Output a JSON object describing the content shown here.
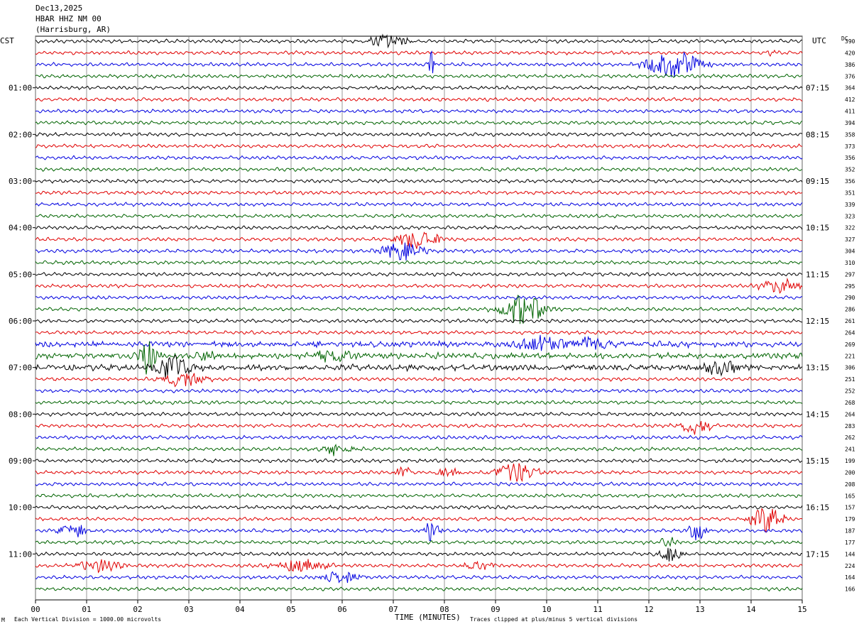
{
  "header": {
    "date": "Dec13,2025",
    "station": "HBAR HHZ NM 00",
    "location": "(Harrisburg, AR)"
  },
  "footer": {
    "left_mark": "M",
    "scale_note": "Each Vertical Division = 1000.00 microvolts",
    "clip_note": "Traces clipped at plus/minus 5 vertical divisions"
  },
  "chart_data": {
    "type": "line",
    "title": "",
    "xlabel": "TIME (MINUTES)",
    "left_axis_label": "CST",
    "right_axis_label": "UTC",
    "dc_label": "DC",
    "xlim": [
      0,
      15
    ],
    "x_ticks": [
      "00",
      "01",
      "02",
      "03",
      "04",
      "05",
      "06",
      "07",
      "08",
      "09",
      "10",
      "11",
      "12",
      "13",
      "14",
      "15"
    ],
    "grid": true,
    "trace_colors": [
      "#000000",
      "#e00000",
      "#0000e0",
      "#006400"
    ],
    "left_times": [
      "01:00",
      "02:00",
      "03:00",
      "04:00",
      "05:00",
      "06:00",
      "07:00",
      "08:00",
      "09:00",
      "10:00",
      "11:00"
    ],
    "right_times": [
      "07:15",
      "08:15",
      "09:15",
      "10:15",
      "11:15",
      "12:15",
      "13:15",
      "14:15",
      "15:15",
      "16:15",
      "17:15"
    ],
    "dc_offsets": [
      "390",
      "420",
      "386",
      "376",
      "364",
      "412",
      "411",
      "394",
      "358",
      "373",
      "356",
      "352",
      "356",
      "351",
      "339",
      "323",
      "322",
      "327",
      "304",
      "310",
      "297",
      "295",
      "290",
      "286",
      "261",
      "264",
      "269",
      "221",
      "306",
      "251",
      "252",
      "268",
      "264",
      "283",
      "262",
      "241",
      "199",
      "200",
      "208",
      "165",
      "157",
      "179",
      "187",
      "177",
      "144",
      "224",
      "164",
      "166"
    ],
    "events": [
      {
        "trace": 0,
        "minute": 6.9,
        "amp": 0.6,
        "dur": 0.35
      },
      {
        "trace": 1,
        "minute": 14.4,
        "amp": 0.3,
        "dur": 0.1
      },
      {
        "trace": 2,
        "minute": 7.75,
        "amp": 1.2,
        "dur": 0.05
      },
      {
        "trace": 2,
        "minute": 12.5,
        "amp": 1.2,
        "dur": 0.5
      },
      {
        "trace": 17,
        "minute": 7.5,
        "amp": 0.9,
        "dur": 0.4
      },
      {
        "trace": 18,
        "minute": 7.2,
        "amp": 0.8,
        "dur": 0.4
      },
      {
        "trace": 21,
        "minute": 14.6,
        "amp": 0.6,
        "dur": 0.4
      },
      {
        "trace": 23,
        "minute": 9.55,
        "amp": 1.4,
        "dur": 0.4
      },
      {
        "trace": 26,
        "minute": 9.9,
        "amp": 0.7,
        "dur": 0.5
      },
      {
        "trace": 26,
        "minute": 10.8,
        "amp": 0.6,
        "dur": 0.4
      },
      {
        "trace": 27,
        "minute": 2.2,
        "amp": 1.6,
        "dur": 0.2
      },
      {
        "trace": 27,
        "minute": 3.3,
        "amp": 0.5,
        "dur": 0.2
      },
      {
        "trace": 27,
        "minute": 5.8,
        "amp": 0.5,
        "dur": 0.4
      },
      {
        "trace": 28,
        "minute": 2.7,
        "amp": 1.4,
        "dur": 0.3
      },
      {
        "trace": 28,
        "minute": 13.4,
        "amp": 0.6,
        "dur": 0.4
      },
      {
        "trace": 29,
        "minute": 2.9,
        "amp": 0.6,
        "dur": 0.4
      },
      {
        "trace": 33,
        "minute": 12.9,
        "amp": 0.7,
        "dur": 0.3
      },
      {
        "trace": 35,
        "minute": 5.9,
        "amp": 0.6,
        "dur": 0.3
      },
      {
        "trace": 37,
        "minute": 7.2,
        "amp": 0.6,
        "dur": 0.15
      },
      {
        "trace": 37,
        "minute": 8.1,
        "amp": 0.4,
        "dur": 0.3
      },
      {
        "trace": 37,
        "minute": 9.4,
        "amp": 0.9,
        "dur": 0.4
      },
      {
        "trace": 41,
        "minute": 14.3,
        "amp": 1.2,
        "dur": 0.3
      },
      {
        "trace": 42,
        "minute": 0.75,
        "amp": 0.6,
        "dur": 0.3
      },
      {
        "trace": 42,
        "minute": 7.75,
        "amp": 0.9,
        "dur": 0.15
      },
      {
        "trace": 42,
        "minute": 12.95,
        "amp": 0.9,
        "dur": 0.15
      },
      {
        "trace": 43,
        "minute": 12.4,
        "amp": 0.4,
        "dur": 0.2
      },
      {
        "trace": 44,
        "minute": 12.4,
        "amp": 0.8,
        "dur": 0.2
      },
      {
        "trace": 45,
        "minute": 1.3,
        "amp": 0.6,
        "dur": 0.4
      },
      {
        "trace": 45,
        "minute": 5.2,
        "amp": 0.5,
        "dur": 0.5
      },
      {
        "trace": 45,
        "minute": 8.7,
        "amp": 0.4,
        "dur": 0.3
      },
      {
        "trace": 46,
        "minute": 6.0,
        "amp": 0.5,
        "dur": 0.4
      }
    ],
    "noisy_traces": [
      26,
      27,
      28
    ]
  }
}
